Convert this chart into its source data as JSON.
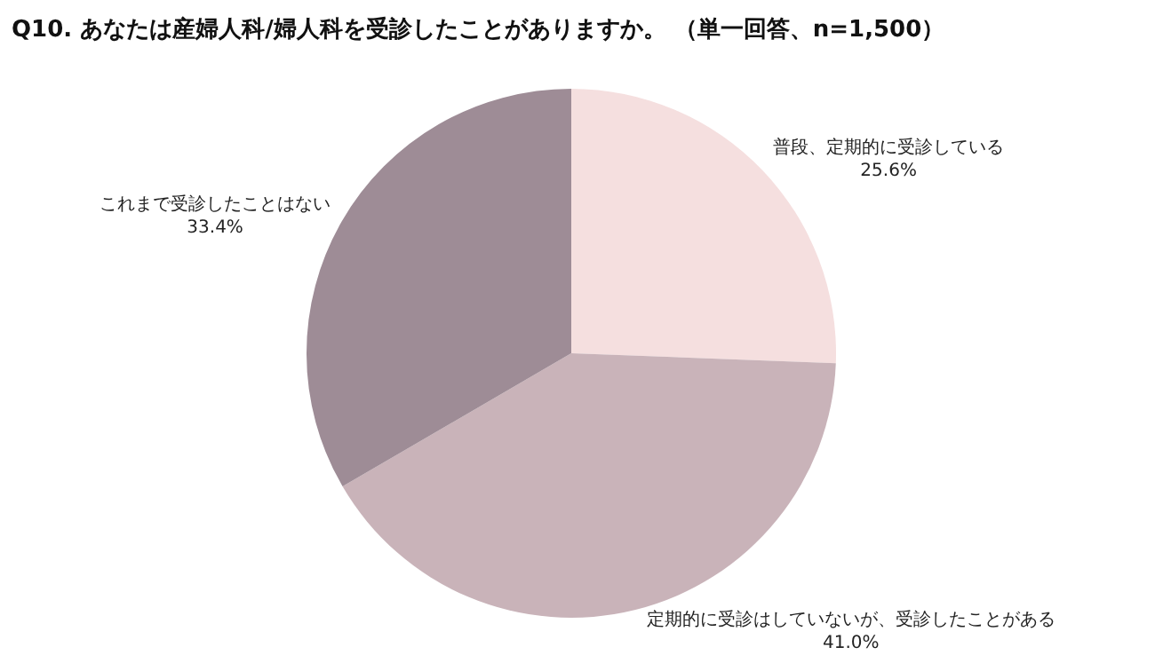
{
  "chart_data": {
    "type": "pie",
    "title": "Q10. あなたは産婦人科/婦人科を受診したことがありますか。 （単一回答、n=1,500）",
    "categories": [
      "普段、定期的に受診している",
      "定期的に受診はしていないが、受診したことがある",
      "これまで受診したことはない"
    ],
    "values": [
      25.6,
      41.0,
      33.4
    ],
    "value_labels": [
      "25.6%",
      "41.0%",
      "33.4%"
    ],
    "colors": [
      "#f5dfdf",
      "#c9b3b9",
      "#9e8c96"
    ],
    "legend": false
  }
}
